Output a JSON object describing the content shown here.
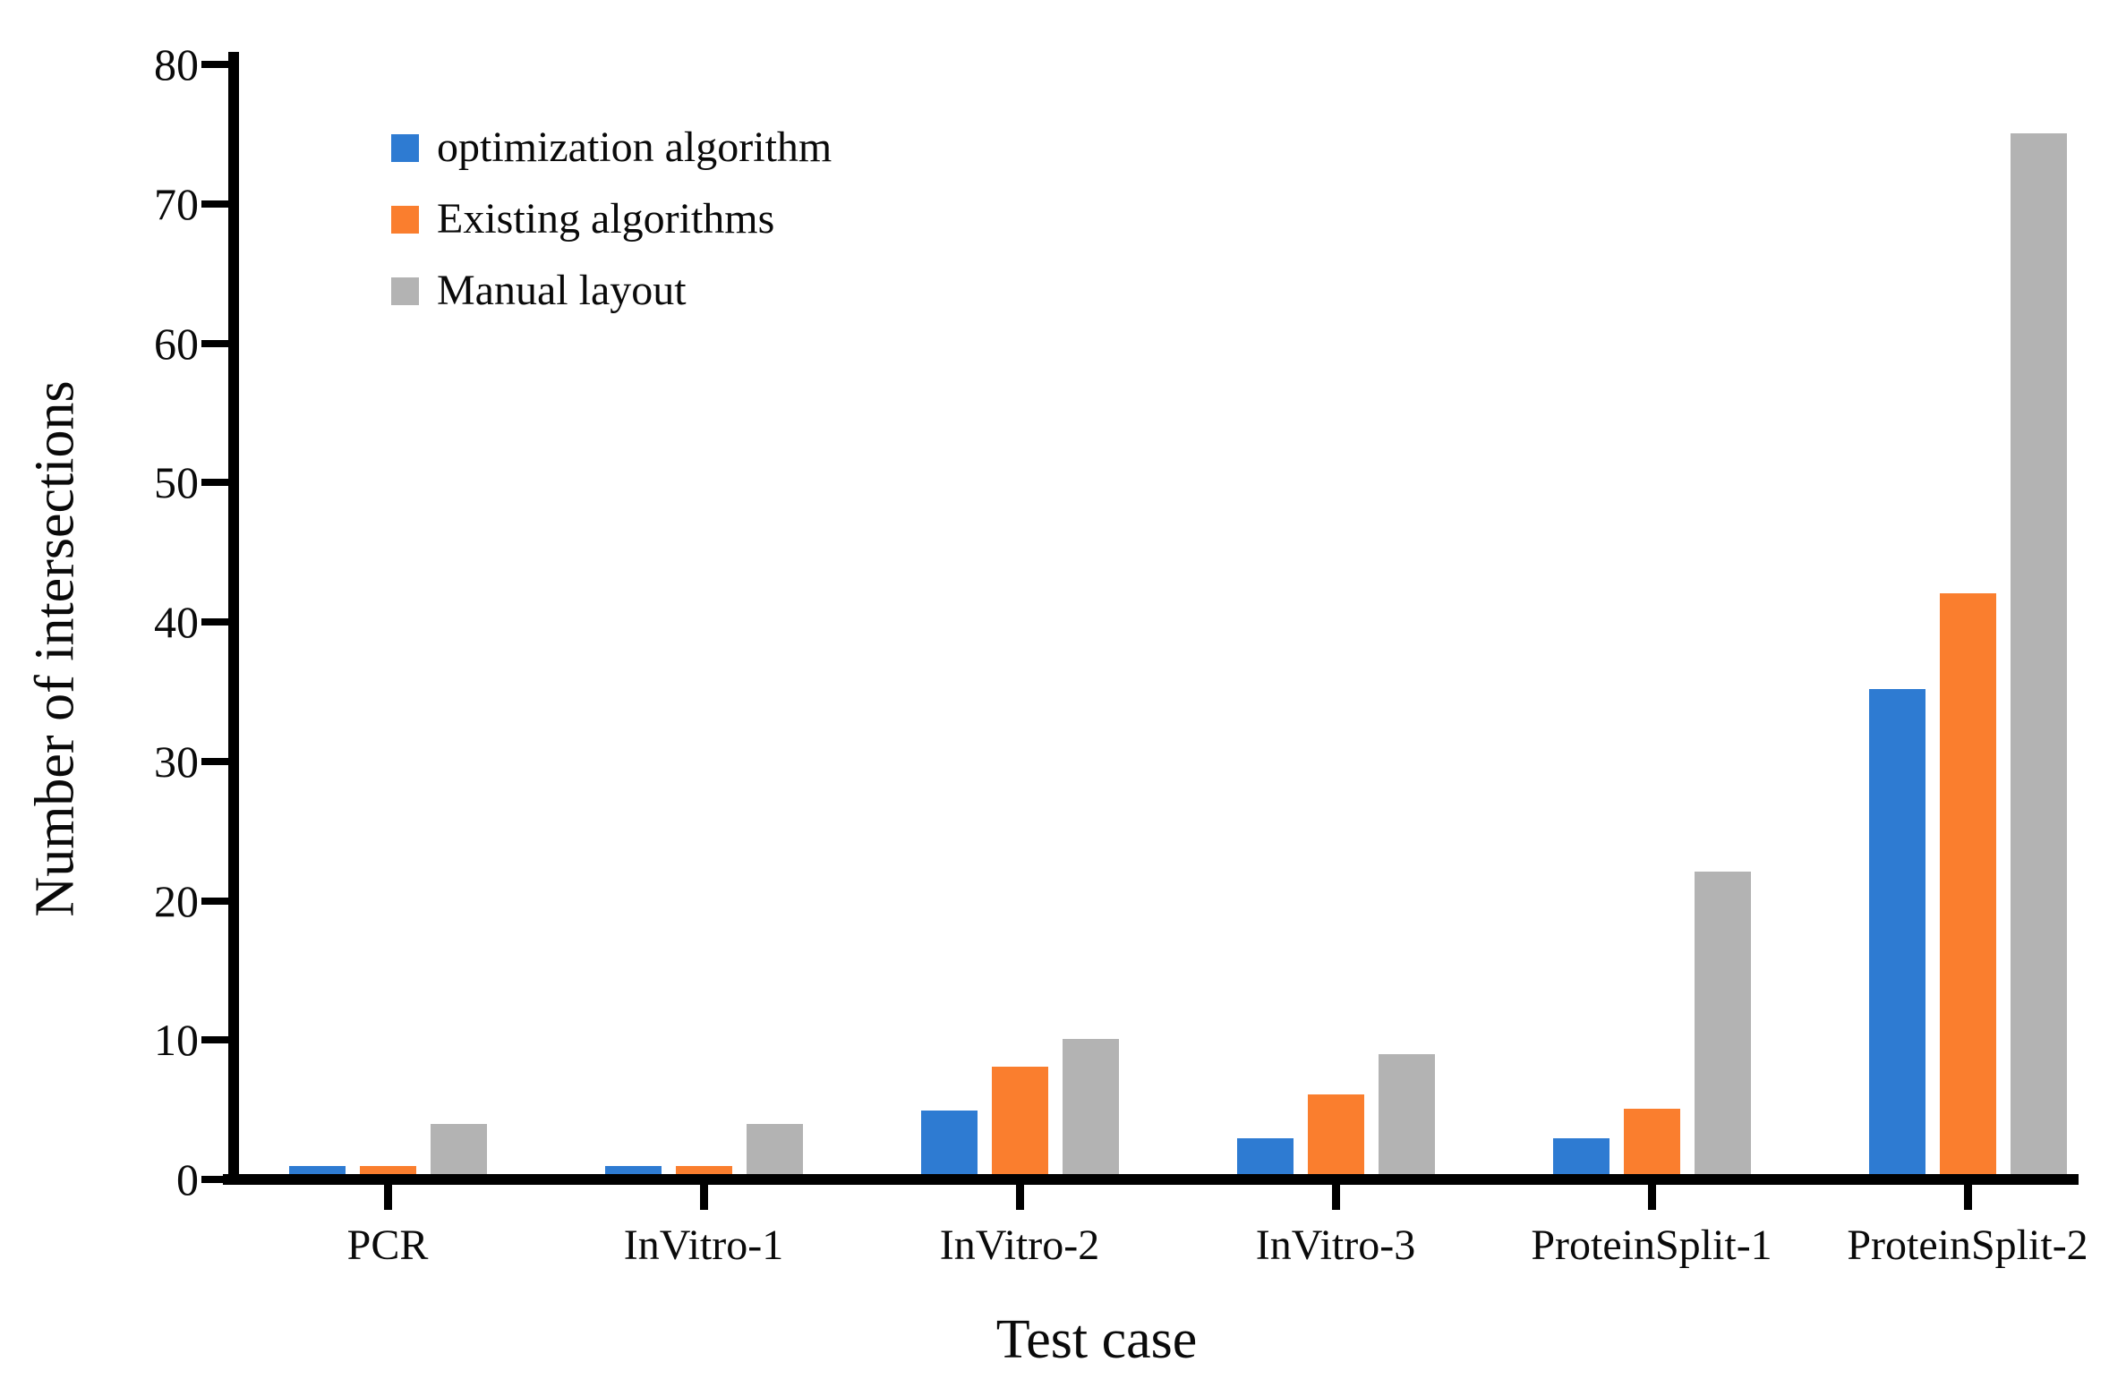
{
  "figure": {
    "background": "#ffffff",
    "text_color": "#0a0a0a",
    "axis_color": "#000000"
  },
  "chart_data": {
    "type": "bar",
    "title": "",
    "xlabel": "Test case",
    "ylabel": "Number of intersections",
    "categories": [
      "PCR",
      "InVitro-1",
      "InVitro-2",
      "InVitro-3",
      "ProteinSplit-1",
      "ProteinSplit-2"
    ],
    "series": [
      {
        "name": "optimization algorithm",
        "color": "#2E7BD2",
        "values": [
          1.1,
          1.1,
          5.1,
          3.1,
          3.1,
          35.3
        ]
      },
      {
        "name": "Existing algorithms",
        "color": "#FA7E2E",
        "values": [
          1.1,
          1.1,
          8.2,
          6.2,
          5.2,
          42.2
        ]
      },
      {
        "name": "Manual layout",
        "color": "#B3B3B3",
        "values": [
          4.1,
          4.1,
          10.2,
          9.1,
          22.2,
          75.2
        ]
      }
    ],
    "ylim": [
      0,
      80
    ],
    "yticks": [
      0,
      10,
      20,
      30,
      40,
      50,
      60,
      70,
      80
    ],
    "grid": false,
    "legend_position": "upper-left-inside",
    "bar_orientation": "vertical"
  }
}
